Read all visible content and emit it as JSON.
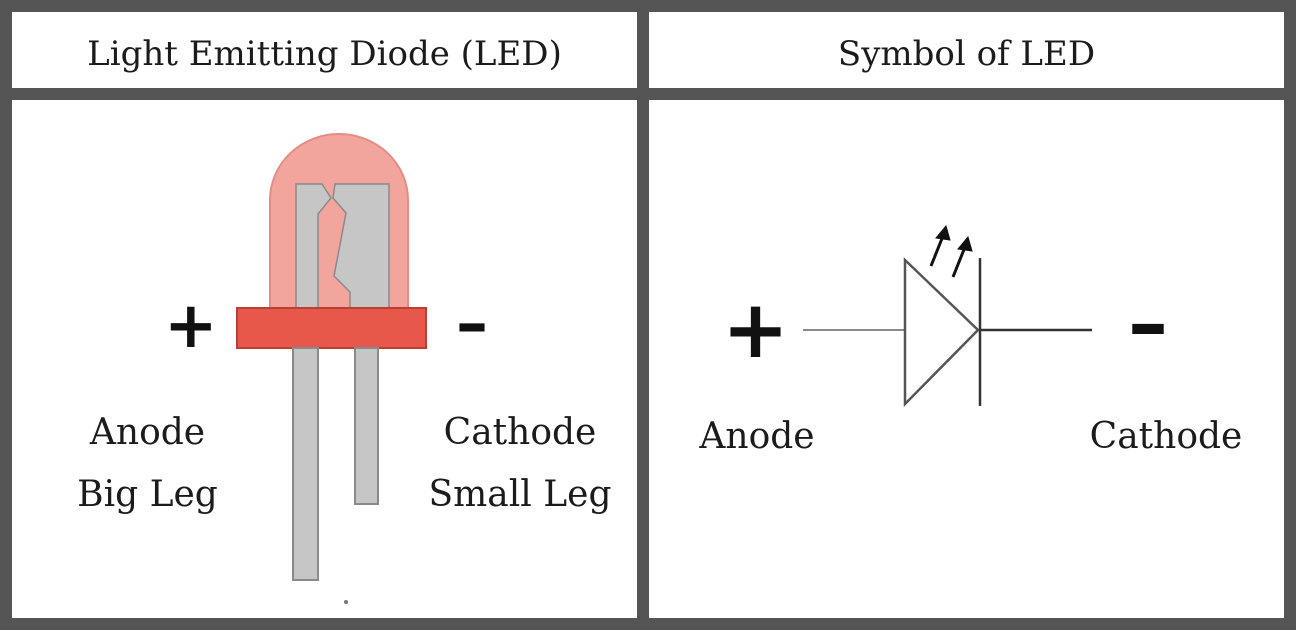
{
  "panels": {
    "left": {
      "title": "Light Emitting Diode (LED)",
      "plus": "+",
      "minus": "–",
      "anode": "Anode",
      "anode_sub": "Big Leg",
      "cathode": "Cathode",
      "cathode_sub": "Small Leg"
    },
    "right": {
      "title": "Symbol of LED",
      "plus": "+",
      "minus": "–",
      "anode": "Anode",
      "cathode": "Cathode"
    }
  },
  "colors": {
    "border": "#555555",
    "led_dome": "#f2a59c",
    "led_dome_edge": "#e58d84",
    "led_base": "#e8584a",
    "led_base_edge": "#b94034",
    "lead_fill": "#c6c6c6",
    "lead_edge": "#8a8a8a"
  }
}
